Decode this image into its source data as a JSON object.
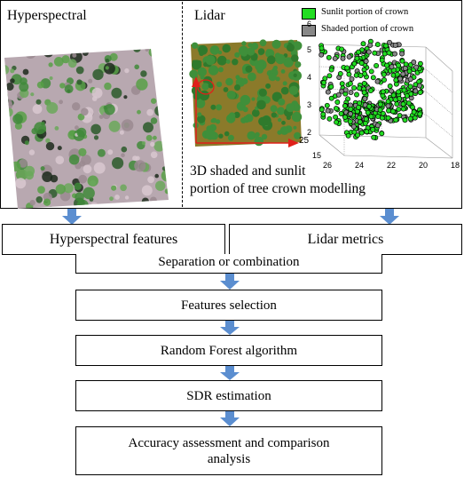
{
  "top_panel": {
    "hyperspectral_label": "Hyperspectral",
    "lidar_label": "Lidar",
    "caption_line1": "3D shaded and sunlit",
    "caption_line2": "portion of tree crown modelling",
    "legend": [
      {
        "label": "Sunlit portion of crown",
        "color": "#22dd22"
      },
      {
        "label": "Shaded portion of crown",
        "color": "#888888"
      }
    ],
    "lidar_axis_value": "25",
    "scatter_z_ticks": [
      "6",
      "5",
      "4",
      "3",
      "2"
    ],
    "scatter_x_ticks": [
      "26",
      "24",
      "22",
      "20",
      "18"
    ],
    "scatter_y_ticks": [
      "15"
    ]
  },
  "flow": {
    "hyperspectral_features": "Hyperspectral features",
    "lidar_metrics": "Lidar metrics",
    "separation": "Separation or combination",
    "features_selection": "Features selection",
    "random_forest": "Random Forest algorithm",
    "sdr": "SDR estimation",
    "accuracy_line1": "Accuracy assessment and comparison",
    "accuracy_line2": "analysis"
  },
  "colors": {
    "arrow": "#5b8ed0",
    "canopy_green": "#3f8f3a",
    "ground_olive": "#8b7a2a",
    "axis_red": "#e0201a"
  }
}
